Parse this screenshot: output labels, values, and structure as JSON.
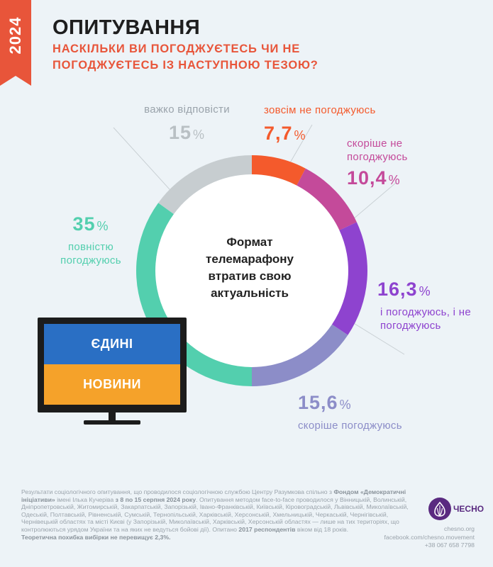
{
  "header": {
    "year": "2024",
    "title": "ОПИТУВАННЯ",
    "subtitle": "НАСКІЛЬКИ ВИ ПОГОДЖУЄТЕСЬ ЧИ НЕ ПОГОДЖУЄТЕСЬ ІЗ НАСТУПНОЮ ТЕЗОЮ?"
  },
  "chart_data": {
    "type": "pie",
    "center_label": "Формат телемарафону втратив свою актуальність",
    "slices": [
      {
        "label": "зовсім не погоджуюсь",
        "value": 7.7,
        "value_text": "7,7",
        "color": "#f45a2c"
      },
      {
        "label": "скоріше не погоджуюсь",
        "value": 10.4,
        "value_text": "10,4",
        "color": "#c44a9a"
      },
      {
        "label": "і погоджуюсь, і не погоджуюсь",
        "value": 16.3,
        "value_text": "16,3",
        "color": "#8e43cf"
      },
      {
        "label": "скоріше погоджуюсь",
        "value": 15.6,
        "value_text": "15,6",
        "color": "#8c8dc8"
      },
      {
        "label": "повністю погоджуюсь",
        "value": 35,
        "value_text": "35",
        "color": "#53cfae"
      },
      {
        "label": "важко відповісти",
        "value": 15,
        "value_text": "15",
        "color": "#c7cdd0"
      }
    ],
    "percent_symbol": "%"
  },
  "tv": {
    "top_text": "ЄДИНІ",
    "bottom_text": "НОВИНИ"
  },
  "footer": {
    "note_1": "Результати соціологічного опитування, що проводилося соціологічною службою Центру Разумкова спільно з ",
    "note_bold_1": "Фондом «Демократичні ініціативи»",
    "note_2": " імені Ілька Кучеріва ",
    "note_bold_2": "з 8 по 15 серпня 2024 року",
    "note_3": ". Опитування методом face-to-face проводилося у Вінницькій, Волинській, Дніпропетровській, Житомирській, Закарпатській, Запорізькій, Івано-Франківській, Київській, Кіровоградській, Львівській, Миколаївській, Одеській, Полтавській, Рівненській, Сумській, Тернопільській, Харківській, Херсонській, Хмельницькій, Черкаській, Чернігівській, Чернівецькій областях та місті Києві (у Запорізькій, Миколаївській, Харківській, Херсонській областях — лише на тих територіях, що контролюються урядом України та на яких не ведуться бойові дії). Опитано ",
    "note_bold_3": "2017 респондентів",
    "note_4": " віком від 18 років.",
    "note_bold_4": "Теоретична похибка вибірки не перевищує 2,3%.",
    "logo_text": "ЧЕСНО",
    "site": "chesno.org",
    "facebook": "facebook.com/chesno.movement",
    "phone": "+38 067 658 7798"
  }
}
